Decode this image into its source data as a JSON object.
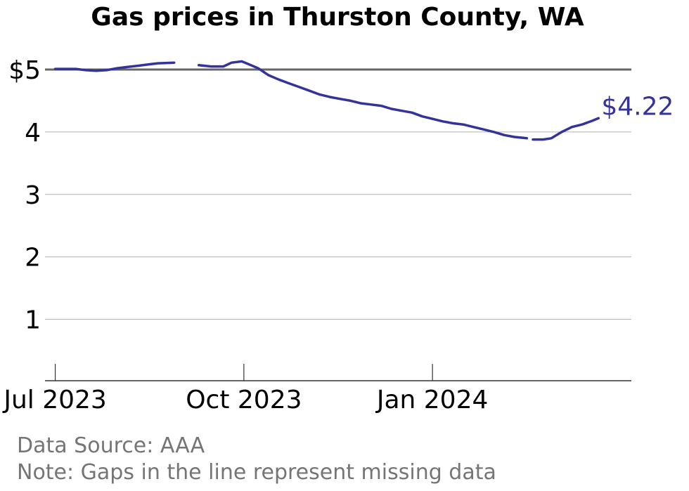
{
  "chart_data": {
    "type": "line",
    "title": "Gas prices in Thurston County, WA",
    "xlabel": "",
    "ylabel": "",
    "ylim": [
      0,
      5.0
    ],
    "x_range": [
      "2023-06-26",
      "2024-04-07"
    ],
    "grid": true,
    "reference_line": 5,
    "y_ticks": [
      {
        "value": 1,
        "label": "1"
      },
      {
        "value": 2,
        "label": "2"
      },
      {
        "value": 3,
        "label": "3"
      },
      {
        "value": 4,
        "label": "4"
      },
      {
        "value": 5,
        "label": "$5"
      }
    ],
    "x_ticks": [
      {
        "date": "2023-07-01",
        "label": "Jul 2023"
      },
      {
        "date": "2023-10-01",
        "label": "Oct 2023"
      },
      {
        "date": "2024-01-01",
        "label": "Jan 2024"
      }
    ],
    "end_label": "$4.22",
    "line_color": "#33339a",
    "series": [
      {
        "segments": [
          [
            [
              "2023-07-01",
              5.01
            ],
            [
              "2023-07-06",
              5.01
            ],
            [
              "2023-07-11",
              5.01
            ],
            [
              "2023-07-16",
              4.99
            ],
            [
              "2023-07-21",
              4.98
            ],
            [
              "2023-07-26",
              4.99
            ],
            [
              "2023-07-31",
              5.02
            ],
            [
              "2023-08-05",
              5.04
            ],
            [
              "2023-08-10",
              5.06
            ],
            [
              "2023-08-15",
              5.08
            ],
            [
              "2023-08-20",
              5.1
            ],
            [
              "2023-08-28",
              5.11
            ]
          ],
          [
            [
              "2023-09-09",
              5.07
            ],
            [
              "2023-09-15",
              5.05
            ],
            [
              "2023-09-21",
              5.05
            ],
            [
              "2023-09-25",
              5.11
            ],
            [
              "2023-09-30",
              5.13
            ],
            [
              "2023-10-03",
              5.09
            ],
            [
              "2023-10-08",
              5.02
            ],
            [
              "2023-10-13",
              4.91
            ],
            [
              "2023-10-18",
              4.84
            ],
            [
              "2023-10-23",
              4.78
            ],
            [
              "2023-10-28",
              4.72
            ],
            [
              "2023-11-02",
              4.66
            ],
            [
              "2023-11-07",
              4.6
            ],
            [
              "2023-11-12",
              4.56
            ],
            [
              "2023-11-17",
              4.53
            ],
            [
              "2023-11-22",
              4.5
            ],
            [
              "2023-11-27",
              4.46
            ],
            [
              "2023-12-02",
              4.44
            ],
            [
              "2023-12-07",
              4.42
            ],
            [
              "2023-12-12",
              4.37
            ],
            [
              "2023-12-17",
              4.34
            ],
            [
              "2023-12-22",
              4.31
            ],
            [
              "2023-12-27",
              4.25
            ],
            [
              "2024-01-01",
              4.21
            ],
            [
              "2024-01-06",
              4.17
            ],
            [
              "2024-01-11",
              4.14
            ],
            [
              "2024-01-16",
              4.12
            ],
            [
              "2024-01-21",
              4.08
            ],
            [
              "2024-01-26",
              4.04
            ],
            [
              "2024-01-31",
              4.0
            ],
            [
              "2024-02-05",
              3.95
            ],
            [
              "2024-02-10",
              3.92
            ],
            [
              "2024-02-16",
              3.9
            ]
          ],
          [
            [
              "2024-02-19",
              3.88
            ],
            [
              "2024-02-24",
              3.88
            ],
            [
              "2024-02-28",
              3.9
            ],
            [
              "2024-03-04",
              4.0
            ],
            [
              "2024-03-09",
              4.08
            ],
            [
              "2024-03-14",
              4.12
            ],
            [
              "2024-03-19",
              4.18
            ],
            [
              "2024-03-22",
              4.22
            ]
          ]
        ]
      }
    ]
  },
  "notes": {
    "source": "Data Source: AAA",
    "gaps": "Note: Gaps in the line represent missing data"
  }
}
